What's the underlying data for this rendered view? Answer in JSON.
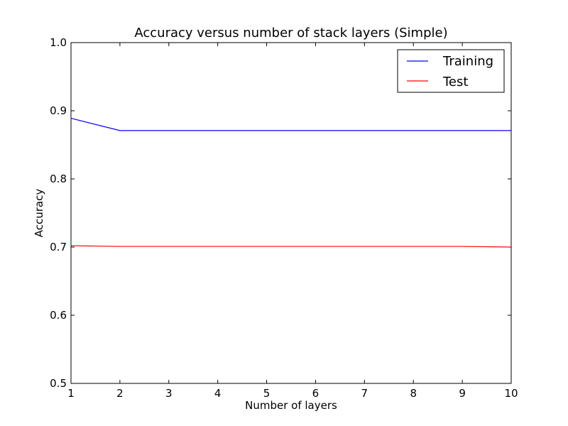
{
  "chart_data": {
    "type": "line",
    "title": "Accuracy versus number of stack layers (Simple)",
    "xlabel": "Number of layers",
    "ylabel": "Accuracy",
    "x": [
      1,
      2,
      3,
      4,
      5,
      6,
      7,
      8,
      9,
      10
    ],
    "xlim": [
      1,
      10
    ],
    "ylim": [
      0.5,
      1.0
    ],
    "xticks": [
      "1",
      "2",
      "3",
      "4",
      "5",
      "6",
      "7",
      "8",
      "9",
      "10"
    ],
    "yticks": [
      "0.5",
      "0.6",
      "0.7",
      "0.8",
      "0.9",
      "1.0"
    ],
    "grid": false,
    "legend_position": "top-right",
    "series": [
      {
        "name": "Training",
        "color": "#0000ff",
        "values": [
          0.889,
          0.871,
          0.871,
          0.871,
          0.871,
          0.871,
          0.871,
          0.871,
          0.871,
          0.871
        ]
      },
      {
        "name": "Test",
        "color": "#ff0000",
        "values": [
          0.702,
          0.701,
          0.701,
          0.701,
          0.701,
          0.701,
          0.701,
          0.701,
          0.701,
          0.7
        ]
      }
    ]
  }
}
